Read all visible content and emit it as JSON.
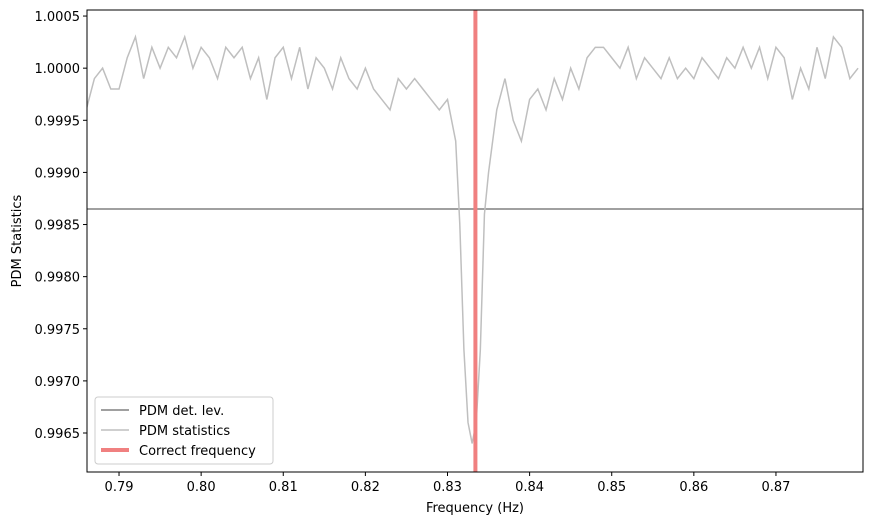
{
  "chart_data": {
    "type": "line",
    "xlabel": "Frequency (Hz)",
    "ylabel": "PDM Statistics",
    "xlim": [
      0.7861,
      0.8806
    ],
    "ylim": [
      0.996126,
      1.000558
    ],
    "xticks": [
      0.79,
      {
        "value": 0.8,
        "label": "0.80"
      },
      0.81,
      0.82,
      0.83,
      0.84,
      0.85,
      0.86,
      0.87
    ],
    "yticks": [
      {
        "value": 0.9965,
        "label": "0.9965"
      },
      {
        "value": 0.997,
        "label": "0.9970"
      },
      {
        "value": 0.9975,
        "label": "0.9975"
      },
      {
        "value": 0.998,
        "label": "0.9980"
      },
      {
        "value": 0.9985,
        "label": "0.9985"
      },
      {
        "value": 0.999,
        "label": "0.9990"
      },
      0.9995,
      {
        "value": 1.0,
        "label": "1.0000"
      },
      1.0005
    ],
    "x": [
      0.786,
      0.787,
      0.788,
      0.789,
      0.79,
      0.791,
      0.792,
      0.793,
      0.794,
      0.795,
      0.796,
      0.797,
      0.798,
      0.799,
      0.8,
      0.801,
      0.802,
      0.803,
      0.804,
      0.805,
      0.806,
      0.807,
      0.808,
      0.809,
      0.81,
      0.811,
      0.812,
      0.813,
      0.814,
      0.815,
      0.816,
      0.817,
      0.818,
      0.819,
      0.82,
      0.821,
      0.822,
      0.823,
      0.824,
      0.825,
      0.826,
      0.827,
      0.828,
      0.829,
      0.83,
      0.831,
      0.8315,
      0.832,
      0.8325,
      0.833,
      0.8335,
      0.834,
      0.8345,
      0.835,
      0.836,
      0.837,
      0.838,
      0.839,
      0.84,
      0.841,
      0.842,
      0.843,
      0.844,
      0.845,
      0.846,
      0.847,
      0.848,
      0.849,
      0.85,
      0.851,
      0.852,
      0.853,
      0.854,
      0.855,
      0.856,
      0.857,
      0.858,
      0.859,
      0.86,
      0.861,
      0.862,
      0.863,
      0.864,
      0.865,
      0.866,
      0.867,
      0.868,
      0.869,
      0.87,
      0.871,
      0.872,
      0.873,
      0.874,
      0.875,
      0.876,
      0.877,
      0.878,
      0.879,
      0.88
    ],
    "series": [
      {
        "name": "PDM statistics",
        "color": "#bfbfbf",
        "values": [
          0.9996,
          0.9999,
          1.0,
          0.9998,
          0.9998,
          1.0001,
          1.0003,
          0.9999,
          1.0002,
          1.0,
          1.0002,
          1.0001,
          1.0003,
          1.0,
          1.0002,
          1.0001,
          0.9999,
          1.0002,
          1.0001,
          1.0002,
          0.9999,
          1.0001,
          0.9997,
          1.0001,
          1.0002,
          0.9999,
          1.0002,
          0.9998,
          1.0001,
          1.0,
          0.9998,
          1.0001,
          0.9999,
          0.9998,
          1.0,
          0.9998,
          0.9997,
          0.9996,
          0.9999,
          0.9998,
          0.9999,
          0.9998,
          0.9997,
          0.9996,
          0.9997,
          0.9993,
          0.9985,
          0.9973,
          0.9966,
          0.9964,
          0.9966,
          0.9973,
          0.9986,
          0.999,
          0.9996,
          0.9999,
          0.9995,
          0.9993,
          0.9997,
          0.9998,
          0.9996,
          0.9999,
          0.9997,
          1.0,
          0.9998,
          1.0001,
          1.0002,
          1.0002,
          1.0001,
          1.0,
          1.0002,
          0.9999,
          1.0001,
          1.0,
          0.9999,
          1.0001,
          0.9999,
          1.0,
          0.9999,
          1.0001,
          1.0,
          0.9999,
          1.0001,
          1.0,
          1.0002,
          1.0,
          1.0002,
          0.9999,
          1.0002,
          1.0001,
          0.9997,
          1.0,
          0.9998,
          1.0002,
          0.9999,
          1.0003,
          1.0002,
          0.9999,
          1.0
        ]
      }
    ],
    "hline": {
      "name": "PDM det. lev.",
      "value": 0.998649,
      "color": "#808080"
    },
    "vline": {
      "name": "Correct frequency",
      "value": 0.8334,
      "color": "#f08080"
    },
    "legend": "lower left"
  }
}
